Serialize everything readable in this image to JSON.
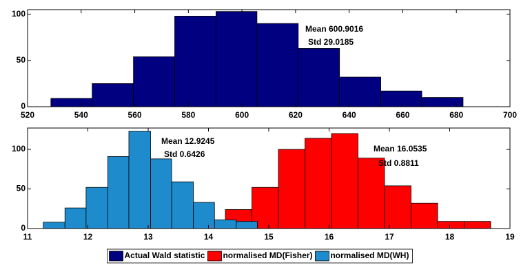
{
  "chart_data": [
    {
      "type": "histogram",
      "xlim": [
        520,
        700
      ],
      "ylim": [
        0,
        105
      ],
      "xticks": [
        520,
        540,
        560,
        580,
        600,
        620,
        640,
        660,
        680,
        700
      ],
      "yticks": [
        0,
        50,
        100
      ],
      "annotations": [
        "Mean 600.9016",
        "Std 29.0185"
      ],
      "series": [
        {
          "name": "Actual Wald statistic",
          "color": "#000080",
          "bins": [
            528.7,
            544.1,
            559.5,
            574.9,
            590.3,
            605.6,
            621.0,
            636.4,
            651.8,
            667.1,
            682.5
          ],
          "values": [
            9,
            25,
            54,
            98,
            103,
            90,
            63,
            32,
            17,
            10
          ]
        }
      ]
    },
    {
      "type": "histogram",
      "xlim": [
        11,
        19
      ],
      "ylim": [
        0,
        127
      ],
      "xticks": [
        11,
        12,
        13,
        14,
        15,
        16,
        17,
        18,
        19
      ],
      "yticks": [
        0,
        50,
        100
      ],
      "annotations": [
        "Mean 12.9245",
        "Std 0.6426",
        "Mean 16.0535",
        "Std 0.8811"
      ],
      "series": [
        {
          "name": "normalised MD(Fisher)",
          "color": "#ff0000",
          "bins": [
            14.28,
            14.72,
            15.16,
            15.6,
            16.04,
            16.48,
            16.92,
            17.36,
            17.8,
            18.24,
            18.68
          ],
          "values": [
            24,
            52,
            100,
            114,
            120,
            89,
            54,
            32,
            9,
            9
          ]
        },
        {
          "name": "normalised MD(WH)",
          "color": "#1e8bcc",
          "bins": [
            11.26,
            11.62,
            11.97,
            12.33,
            12.68,
            13.04,
            13.39,
            13.75,
            14.1,
            14.46,
            14.81
          ],
          "values": [
            8,
            26,
            52,
            91,
            123,
            88,
            59,
            33,
            11,
            9
          ]
        }
      ]
    }
  ]
}
